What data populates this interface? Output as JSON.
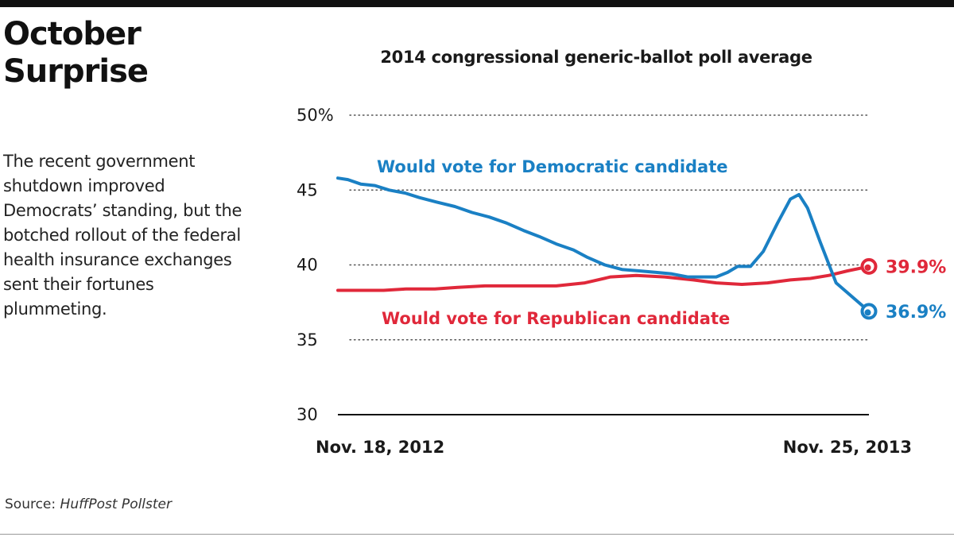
{
  "headline": "October Surprise",
  "dek": "The recent government shutdown improved Democrats’ standing, but the botched rollout of the federal health insurance exchanges sent their fortunes plummeting.",
  "source": {
    "prefix": "Source: ",
    "publication": "HuffPost Pollster"
  },
  "chart_data": {
    "type": "line",
    "title": "2014 congressional generic-ballot poll average",
    "xlabel": "",
    "ylabel": "",
    "x_start_label": "Nov. 18, 2012",
    "x_end_label": "Nov. 25, 2013",
    "x_range": [
      "2012-11-18",
      "2013-11-25"
    ],
    "ylim": [
      30,
      50
    ],
    "y_ticks": [
      {
        "value": 50,
        "label": "50%"
      },
      {
        "value": 45,
        "label": "45"
      },
      {
        "value": 40,
        "label": "40"
      },
      {
        "value": 35,
        "label": "35"
      },
      {
        "value": 30,
        "label": "30"
      }
    ],
    "grid": "dotted horizontal",
    "legend": "inline labels",
    "series": [
      {
        "name": "Would vote for Democratic candidate",
        "color": "#1a80c4",
        "end_label": "36.9%",
        "points": [
          [
            "2012-11-18",
            45.8
          ],
          [
            "2012-11-25",
            45.7
          ],
          [
            "2012-12-04",
            45.4
          ],
          [
            "2012-12-14",
            45.3
          ],
          [
            "2012-12-24",
            45.0
          ],
          [
            "2013-01-04",
            44.8
          ],
          [
            "2013-01-14",
            44.5
          ],
          [
            "2013-01-26",
            44.2
          ],
          [
            "2013-02-08",
            43.9
          ],
          [
            "2013-02-20",
            43.5
          ],
          [
            "2013-03-04",
            43.2
          ],
          [
            "2013-03-16",
            42.8
          ],
          [
            "2013-03-28",
            42.3
          ],
          [
            "2013-04-08",
            41.9
          ],
          [
            "2013-04-20",
            41.4
          ],
          [
            "2013-05-02",
            41.0
          ],
          [
            "2013-05-12",
            40.5
          ],
          [
            "2013-05-24",
            40.0
          ],
          [
            "2013-06-05",
            39.7
          ],
          [
            "2013-06-17",
            39.6
          ],
          [
            "2013-06-29",
            39.5
          ],
          [
            "2013-07-10",
            39.4
          ],
          [
            "2013-07-21",
            39.2
          ],
          [
            "2013-08-01",
            39.2
          ],
          [
            "2013-08-10",
            39.2
          ],
          [
            "2013-08-18",
            39.5
          ],
          [
            "2013-08-25",
            39.9
          ],
          [
            "2013-09-03",
            39.9
          ],
          [
            "2013-09-12",
            40.9
          ],
          [
            "2013-09-22",
            42.8
          ],
          [
            "2013-10-01",
            44.4
          ],
          [
            "2013-10-07",
            44.7
          ],
          [
            "2013-10-13",
            43.8
          ],
          [
            "2013-10-22",
            41.5
          ],
          [
            "2013-11-02",
            38.8
          ],
          [
            "2013-11-25",
            36.9
          ]
        ]
      },
      {
        "name": "Would vote for Republican candidate",
        "color": "#e0283a",
        "end_label": "39.9%",
        "points": [
          [
            "2012-11-18",
            38.3
          ],
          [
            "2012-12-01",
            38.3
          ],
          [
            "2012-12-20",
            38.3
          ],
          [
            "2013-01-05",
            38.4
          ],
          [
            "2013-01-25",
            38.4
          ],
          [
            "2013-02-10",
            38.5
          ],
          [
            "2013-03-01",
            38.6
          ],
          [
            "2013-04-01",
            38.6
          ],
          [
            "2013-04-20",
            38.6
          ],
          [
            "2013-05-10",
            38.8
          ],
          [
            "2013-05-28",
            39.2
          ],
          [
            "2013-06-15",
            39.3
          ],
          [
            "2013-07-05",
            39.2
          ],
          [
            "2013-07-25",
            39.0
          ],
          [
            "2013-08-10",
            38.8
          ],
          [
            "2013-08-28",
            38.7
          ],
          [
            "2013-09-15",
            38.8
          ],
          [
            "2013-10-01",
            39.0
          ],
          [
            "2013-10-15",
            39.1
          ],
          [
            "2013-10-28",
            39.3
          ],
          [
            "2013-11-10",
            39.6
          ],
          [
            "2013-11-25",
            39.9
          ]
        ]
      }
    ],
    "annotations": [
      {
        "text": "Would vote for Democratic candidate",
        "series": 0,
        "color": "#1a80c4"
      },
      {
        "text": "Would vote for Republican candidate",
        "series": 1,
        "color": "#e0283a"
      }
    ]
  }
}
